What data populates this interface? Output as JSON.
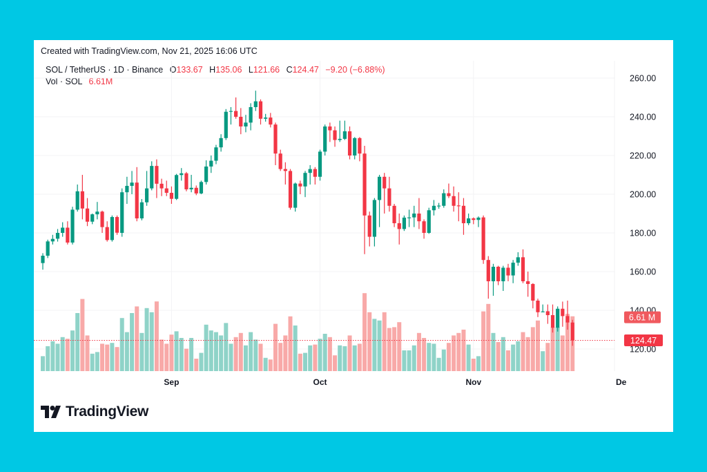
{
  "header": {
    "created": "Created with TradingView.com, Nov 21, 2025 16:06 UTC",
    "symbol": "SOL / TetherUS · 1D · Binance",
    "o_label": "O",
    "o_value": "133.67",
    "h_label": "H",
    "h_value": "135.06",
    "l_label": "L",
    "l_value": "121.66",
    "c_label": "C",
    "c_value": "124.47",
    "change": "−9.20 (−6.88%)",
    "vol_label": "Vol · SOL",
    "vol_value": "6.61M"
  },
  "logo": {
    "text": "TradingView",
    "icon": "tradingview-logo-icon"
  },
  "colors": {
    "up": "#089981",
    "down": "#f23645",
    "vol_up": "#8fd3c8",
    "vol_down": "#f8a9a8",
    "background": "#00c8e4"
  },
  "chart_data": {
    "type": "candlestick",
    "series_fields": [
      "date",
      "open",
      "high",
      "low",
      "close",
      "volume_M"
    ],
    "price_axis": {
      "ticks": [
        "260.00",
        "240.00",
        "220.00",
        "200.00",
        "180.00",
        "160.00",
        "140.00",
        "120.00"
      ],
      "range": [
        108,
        268
      ]
    },
    "time_axis": {
      "ticks": [
        {
          "label": "Sep",
          "date": "2025-09-01"
        },
        {
          "label": "Oct",
          "date": "2025-10-01"
        },
        {
          "label": "Nov",
          "date": "2025-11-01"
        },
        {
          "label": "De",
          "date": "2025-12-01"
        }
      ]
    },
    "last_price_label": "124.47",
    "last_volume_label": "6.61 M",
    "grid": true,
    "candles": [
      [
        "2025-08-06",
        164.4,
        169.5,
        161.0,
        168.2,
        1.8
      ],
      [
        "2025-08-07",
        168.2,
        176.5,
        167.0,
        175.6,
        3.0
      ],
      [
        "2025-08-08",
        175.6,
        179.0,
        174.0,
        176.9,
        3.6
      ],
      [
        "2025-08-09",
        177.0,
        182.0,
        175.5,
        180.0,
        3.3
      ],
      [
        "2025-08-10",
        180.0,
        185.5,
        178.0,
        182.7,
        4.1
      ],
      [
        "2025-08-11",
        182.7,
        186.0,
        174.0,
        175.0,
        3.9
      ],
      [
        "2025-08-12",
        175.0,
        193.5,
        174.0,
        192.0,
        4.9
      ],
      [
        "2025-08-13",
        192.0,
        205.0,
        191.0,
        201.5,
        7.0
      ],
      [
        "2025-08-14",
        201.5,
        210.0,
        187.0,
        192.6,
        8.7
      ],
      [
        "2025-08-15",
        192.6,
        198.0,
        183.5,
        185.8,
        4.3
      ],
      [
        "2025-08-16",
        185.8,
        190.0,
        184.5,
        189.6,
        2.1
      ],
      [
        "2025-08-17",
        189.6,
        196.0,
        187.0,
        191.0,
        2.3
      ],
      [
        "2025-08-18",
        191.0,
        191.5,
        180.0,
        183.0,
        3.3
      ],
      [
        "2025-08-19",
        183.0,
        186.0,
        175.5,
        176.3,
        3.2
      ],
      [
        "2025-08-20",
        176.3,
        189.0,
        175.5,
        188.2,
        3.4
      ],
      [
        "2025-08-21",
        188.2,
        189.0,
        179.0,
        180.1,
        2.9
      ],
      [
        "2025-08-22",
        180.0,
        203.0,
        178.0,
        201.0,
        6.4
      ],
      [
        "2025-08-23",
        201.0,
        209.0,
        195.0,
        204.3,
        4.7
      ],
      [
        "2025-08-24",
        204.3,
        212.0,
        200.0,
        206.0,
        7.0
      ],
      [
        "2025-08-25",
        206.0,
        214.0,
        186.0,
        187.5,
        7.8
      ],
      [
        "2025-08-26",
        187.5,
        197.5,
        186.5,
        195.8,
        4.6
      ],
      [
        "2025-08-27",
        195.8,
        212.0,
        194.0,
        203.0,
        7.6
      ],
      [
        "2025-08-28",
        203.0,
        217.0,
        202.0,
        214.6,
        7.1
      ],
      [
        "2025-08-29",
        214.6,
        218.0,
        198.0,
        205.4,
        8.4
      ],
      [
        "2025-08-30",
        205.4,
        208.0,
        199.0,
        203.0,
        3.8
      ],
      [
        "2025-08-31",
        203.0,
        207.0,
        199.0,
        200.7,
        3.3
      ],
      [
        "2025-09-01",
        200.7,
        204.0,
        195.0,
        197.6,
        4.4
      ],
      [
        "2025-09-02",
        197.6,
        210.5,
        197.0,
        209.9,
        4.8
      ],
      [
        "2025-09-03",
        209.9,
        213.5,
        207.0,
        210.8,
        4.0
      ],
      [
        "2025-09-04",
        210.8,
        211.5,
        201.5,
        202.5,
        2.7
      ],
      [
        "2025-09-05",
        202.5,
        210.0,
        201.0,
        203.3,
        4.0
      ],
      [
        "2025-09-06",
        203.3,
        204.5,
        199.5,
        200.4,
        1.5
      ],
      [
        "2025-09-07",
        200.4,
        207.0,
        200.0,
        206.3,
        2.2
      ],
      [
        "2025-09-08",
        206.3,
        217.5,
        205.0,
        214.3,
        5.6
      ],
      [
        "2025-09-09",
        214.3,
        220.0,
        211.0,
        217.3,
        4.9
      ],
      [
        "2025-09-10",
        217.3,
        225.5,
        215.5,
        224.2,
        4.7
      ],
      [
        "2025-09-11",
        224.2,
        231.0,
        222.0,
        229.0,
        4.3
      ],
      [
        "2025-09-12",
        229.0,
        244.0,
        228.0,
        242.6,
        5.8
      ],
      [
        "2025-09-13",
        242.6,
        245.0,
        236.0,
        243.0,
        3.3
      ],
      [
        "2025-09-14",
        243.0,
        250.0,
        239.0,
        240.0,
        4.1
      ],
      [
        "2025-09-15",
        240.0,
        244.5,
        231.0,
        235.0,
        4.6
      ],
      [
        "2025-09-16",
        235.0,
        241.0,
        232.0,
        237.0,
        3.1
      ],
      [
        "2025-09-17",
        237.0,
        247.0,
        233.0,
        245.0,
        4.7
      ],
      [
        "2025-09-18",
        245.0,
        253.5,
        243.0,
        248.0,
        3.8
      ],
      [
        "2025-09-19",
        248.0,
        249.0,
        236.0,
        239.0,
        3.3
      ],
      [
        "2025-09-20",
        239.0,
        241.5,
        237.5,
        239.6,
        1.6
      ],
      [
        "2025-09-21",
        239.6,
        242.0,
        234.5,
        236.0,
        1.4
      ],
      [
        "2025-09-22",
        236.0,
        237.0,
        215.0,
        221.0,
        5.7
      ],
      [
        "2025-09-23",
        221.0,
        223.0,
        212.0,
        213.0,
        3.4
      ],
      [
        "2025-09-24",
        213.0,
        216.5,
        205.0,
        212.0,
        4.3
      ],
      [
        "2025-09-25",
        212.0,
        213.0,
        192.0,
        193.0,
        6.6
      ],
      [
        "2025-09-26",
        193.0,
        206.0,
        191.0,
        205.5,
        5.5
      ],
      [
        "2025-09-27",
        205.5,
        207.0,
        200.0,
        204.0,
        2.1
      ],
      [
        "2025-09-28",
        204.0,
        212.0,
        198.5,
        211.0,
        2.2
      ],
      [
        "2025-09-29",
        211.0,
        215.0,
        205.0,
        213.0,
        3.1
      ],
      [
        "2025-09-30",
        213.0,
        214.0,
        205.0,
        209.0,
        3.2
      ],
      [
        "2025-10-01",
        209.0,
        223.0,
        207.0,
        222.0,
        3.9
      ],
      [
        "2025-10-02",
        222.0,
        236.0,
        220.0,
        235.0,
        4.5
      ],
      [
        "2025-10-03",
        235.0,
        237.0,
        227.0,
        233.0,
        4.1
      ],
      [
        "2025-10-04",
        233.0,
        235.0,
        224.5,
        228.0,
        1.9
      ],
      [
        "2025-10-05",
        228.0,
        238.0,
        227.0,
        228.6,
        3.1
      ],
      [
        "2025-10-06",
        228.6,
        238.0,
        228.0,
        232.5,
        3.0
      ],
      [
        "2025-10-07",
        232.5,
        235.0,
        218.0,
        220.0,
        4.3
      ],
      [
        "2025-10-08",
        220.0,
        229.5,
        218.0,
        229.0,
        3.1
      ],
      [
        "2025-10-09",
        229.0,
        229.5,
        217.0,
        221.0,
        3.3
      ],
      [
        "2025-10-10",
        221.0,
        225.0,
        169.0,
        189.0,
        9.4
      ],
      [
        "2025-10-11",
        189.0,
        191.0,
        173.0,
        178.0,
        7.1
      ],
      [
        "2025-10-12",
        178.0,
        198.0,
        173.0,
        197.0,
        6.3
      ],
      [
        "2025-10-13",
        197.0,
        210.0,
        183.0,
        209.0,
        6.1
      ],
      [
        "2025-10-14",
        209.0,
        211.0,
        190.0,
        203.0,
        7.1
      ],
      [
        "2025-10-15",
        203.0,
        209.0,
        191.0,
        194.0,
        5.2
      ],
      [
        "2025-10-16",
        194.0,
        195.0,
        183.0,
        185.0,
        5.3
      ],
      [
        "2025-10-17",
        185.0,
        190.0,
        174.0,
        182.0,
        5.9
      ],
      [
        "2025-10-18",
        182.0,
        189.0,
        181.0,
        187.9,
        2.5
      ],
      [
        "2025-10-19",
        188.0,
        192.0,
        183.0,
        188.0,
        2.5
      ],
      [
        "2025-10-20",
        188.0,
        194.0,
        183.0,
        190.0,
        3.1
      ],
      [
        "2025-10-21",
        190.0,
        198.0,
        182.0,
        186.0,
        4.6
      ],
      [
        "2025-10-22",
        186.0,
        187.0,
        177.0,
        180.0,
        4.0
      ],
      [
        "2025-10-23",
        180.0,
        193.0,
        179.5,
        191.7,
        3.4
      ],
      [
        "2025-10-24",
        191.7,
        197.0,
        189.0,
        194.0,
        3.3
      ],
      [
        "2025-10-25",
        194.0,
        195.5,
        192.5,
        194.1,
        1.6
      ],
      [
        "2025-10-26",
        194.0,
        202.5,
        193.0,
        200.5,
        2.6
      ],
      [
        "2025-10-27",
        200.5,
        205.5,
        198.0,
        199.0,
        3.4
      ],
      [
        "2025-10-28",
        199.0,
        204.0,
        191.0,
        194.0,
        4.3
      ],
      [
        "2025-10-29",
        194.2,
        201.0,
        186.0,
        194.0,
        4.6
      ],
      [
        "2025-10-30",
        194.0,
        198.0,
        179.0,
        185.0,
        5.0
      ],
      [
        "2025-10-31",
        185.0,
        190.0,
        184.0,
        187.5,
        3.2
      ],
      [
        "2025-11-01",
        187.5,
        188.0,
        184.5,
        186.7,
        1.5
      ],
      [
        "2025-11-02",
        186.7,
        188.5,
        183.0,
        187.9,
        1.8
      ],
      [
        "2025-11-03",
        188.0,
        189.0,
        164.0,
        166.0,
        7.2
      ],
      [
        "2025-11-04",
        166.0,
        168.0,
        146.0,
        155.0,
        8.1
      ],
      [
        "2025-11-05",
        155.0,
        164.0,
        147.5,
        162.5,
        4.6
      ],
      [
        "2025-11-06",
        162.5,
        163.0,
        153.0,
        155.0,
        3.5
      ],
      [
        "2025-11-07",
        155.0,
        163.0,
        150.0,
        162.0,
        4.1
      ],
      [
        "2025-11-08",
        162.0,
        164.0,
        155.0,
        158.0,
        2.5
      ],
      [
        "2025-11-09",
        158.0,
        166.0,
        154.0,
        164.6,
        3.2
      ],
      [
        "2025-11-10",
        164.6,
        170.0,
        163.0,
        167.4,
        3.6
      ],
      [
        "2025-11-11",
        167.4,
        171.5,
        154.0,
        155.0,
        4.7
      ],
      [
        "2025-11-12",
        155.0,
        160.0,
        147.0,
        153.6,
        4.1
      ],
      [
        "2025-11-13",
        153.6,
        154.0,
        141.0,
        145.0,
        5.3
      ],
      [
        "2025-11-14",
        145.0,
        146.0,
        136.5,
        139.0,
        6.1
      ],
      [
        "2025-11-15",
        139.0,
        143.0,
        139.0,
        139.4,
        2.4
      ],
      [
        "2025-11-16",
        139.5,
        143.0,
        133.0,
        137.5,
        3.4
      ],
      [
        "2025-11-17",
        137.5,
        143.0,
        128.5,
        131.0,
        5.3
      ],
      [
        "2025-11-18",
        131.0,
        142.0,
        129.0,
        140.8,
        5.3
      ],
      [
        "2025-11-19",
        140.8,
        144.5,
        131.5,
        137.0,
        4.3
      ],
      [
        "2025-11-20",
        137.0,
        145.0,
        130.0,
        133.7,
        6.9
      ],
      [
        "2025-11-21",
        133.67,
        135.06,
        121.66,
        124.47,
        6.61
      ]
    ]
  }
}
